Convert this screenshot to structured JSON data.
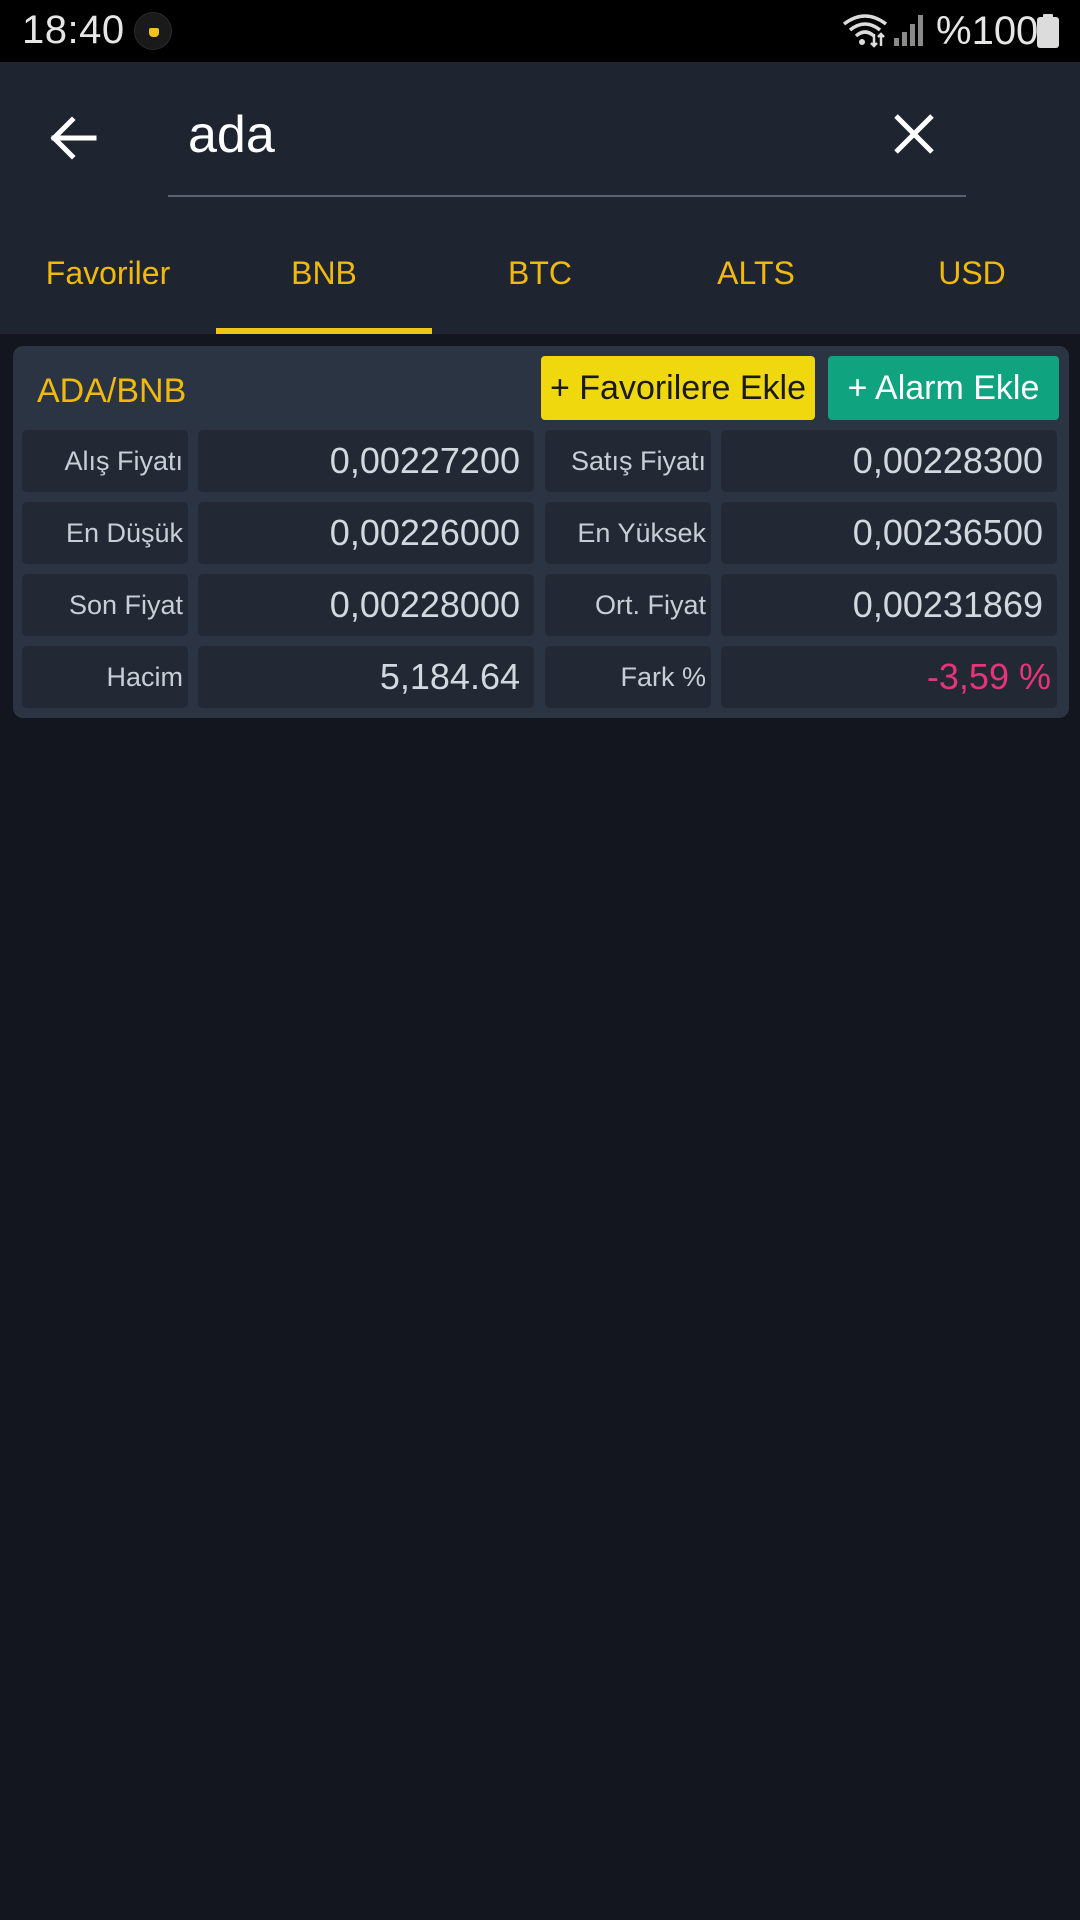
{
  "status_bar": {
    "time": "18:40",
    "battery_text": "%100",
    "icons": [
      "app-notification-icon",
      "wifi-icon",
      "signal-icon",
      "battery-icon"
    ]
  },
  "search": {
    "value": "ada",
    "icons": [
      "back-arrow-icon",
      "close-icon"
    ]
  },
  "tabs": [
    {
      "label": "Favoriler",
      "active": false
    },
    {
      "label": "BNB",
      "active": true
    },
    {
      "label": "BTC",
      "active": false
    },
    {
      "label": "ALTS",
      "active": false
    },
    {
      "label": "USD",
      "active": false
    }
  ],
  "card": {
    "pair": "ADA/BNB",
    "fav_button": "+ Favorilere Ekle",
    "alarm_button": "+ Alarm Ekle",
    "rows": [
      {
        "l1": "Alış Fiyatı",
        "v1": "0,00227200",
        "l2": "Satış Fiyatı",
        "v2": "0,00228300"
      },
      {
        "l1": "En Düşük",
        "v1": "0,00226000",
        "l2": "En Yüksek",
        "v2": "0,00236500"
      },
      {
        "l1": "Son Fiyat",
        "v1": "0,00228000",
        "l2": "Ort. Fiyat",
        "v2": "0,00231869"
      },
      {
        "l1": "Hacim",
        "v1": "5,184.64",
        "l2": "Fark %",
        "v2": "-3,59 %"
      }
    ]
  },
  "colors": {
    "accent": "#f0b90b",
    "favorite_button": "#f0d80e",
    "alarm_button": "#10a37f",
    "negative": "#e8337a",
    "background": "#13161e",
    "header": "#1e2430"
  }
}
